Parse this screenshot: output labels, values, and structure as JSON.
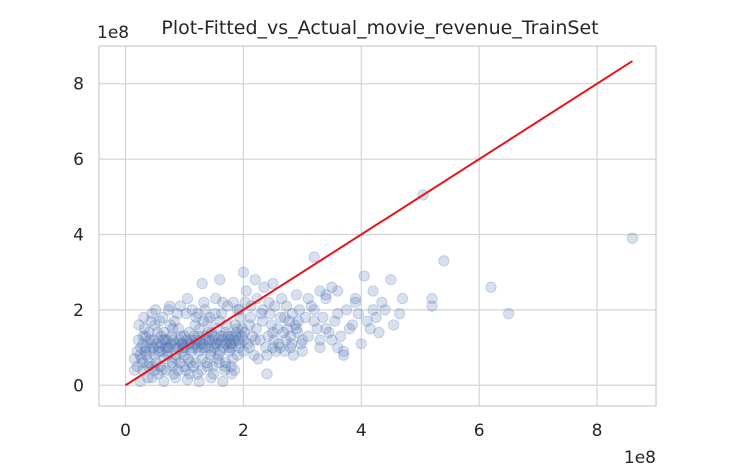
{
  "chart_data": {
    "type": "scatter",
    "title": "Plot-Fitted_vs_Actual_movie_revenue_TrainSet",
    "xlabel": "",
    "ylabel": "",
    "x_offset_label": "1e8",
    "y_offset_label": "1e8",
    "xlim": [
      -0.45,
      9.0
    ],
    "ylim": [
      -0.55,
      9.0
    ],
    "x_ticks": [
      0,
      2,
      4,
      6,
      8
    ],
    "y_ticks": [
      0,
      2,
      4,
      6,
      8
    ],
    "x_tick_labels": [
      "0",
      "2",
      "4",
      "6",
      "8"
    ],
    "y_tick_labels": [
      "0",
      "2",
      "4",
      "6",
      "8"
    ],
    "grid": true,
    "series": [
      {
        "kind": "scatter",
        "color": "#4c72b0",
        "opacity": 0.22,
        "points": [
          [
            0.3,
            1.3
          ],
          [
            0.4,
            0.6
          ],
          [
            0.5,
            1.6
          ],
          [
            0.6,
            0.9
          ],
          [
            0.7,
            1.2
          ],
          [
            0.8,
            0.5
          ],
          [
            0.9,
            1.5
          ],
          [
            1.0,
            0.8
          ],
          [
            1.1,
            1.1
          ],
          [
            1.2,
            1.8
          ],
          [
            1.3,
            0.7
          ],
          [
            1.4,
            1.4
          ],
          [
            1.5,
            1.0
          ],
          [
            1.6,
            1.7
          ],
          [
            1.7,
            0.6
          ],
          [
            1.8,
            1.3
          ],
          [
            1.9,
            2.0
          ],
          [
            2.0,
            0.9
          ],
          [
            2.1,
            1.6
          ],
          [
            2.2,
            1.2
          ],
          [
            2.3,
            1.9
          ],
          [
            2.4,
            0.8
          ],
          [
            2.5,
            1.4
          ],
          [
            2.6,
            1.1
          ],
          [
            2.7,
            1.8
          ],
          [
            2.8,
            1.0
          ],
          [
            2.9,
            1.5
          ],
          [
            3.0,
            1.2
          ],
          [
            0.2,
            0.5
          ],
          [
            0.35,
            1.0
          ],
          [
            0.45,
            1.9
          ],
          [
            0.55,
            0.3
          ],
          [
            0.65,
            1.4
          ],
          [
            0.75,
            2.1
          ],
          [
            0.85,
            0.7
          ],
          [
            0.95,
            1.1
          ],
          [
            1.05,
            2.3
          ],
          [
            1.15,
            0.5
          ],
          [
            1.25,
            1.3
          ],
          [
            1.35,
            2.0
          ],
          [
            1.45,
            0.9
          ],
          [
            1.55,
            1.5
          ],
          [
            1.65,
            2.2
          ],
          [
            1.75,
            1.0
          ],
          [
            1.85,
            0.4
          ],
          [
            1.95,
            1.8
          ],
          [
            2.05,
            2.5
          ],
          [
            2.15,
            1.3
          ],
          [
            2.25,
            0.7
          ],
          [
            2.35,
            2.6
          ],
          [
            2.45,
            1.9
          ],
          [
            2.55,
            0.9
          ],
          [
            2.65,
            2.3
          ],
          [
            2.75,
            1.5
          ],
          [
            2.85,
            0.8
          ],
          [
            2.95,
            2.0
          ],
          [
            3.1,
            1.3
          ],
          [
            3.2,
            1.7
          ],
          [
            3.3,
            1.0
          ],
          [
            3.4,
            2.4
          ],
          [
            3.5,
            1.2
          ],
          [
            3.6,
            1.9
          ],
          [
            3.7,
            0.9
          ],
          [
            3.8,
            1.5
          ],
          [
            3.9,
            2.2
          ],
          [
            4.0,
            1.1
          ],
          [
            4.1,
            1.7
          ],
          [
            4.2,
            2.5
          ],
          [
            4.3,
            1.4
          ],
          [
            4.4,
            2.0
          ],
          [
            1.3,
            2.7
          ],
          [
            1.6,
            2.8
          ],
          [
            2.0,
            3.0
          ],
          [
            2.2,
            2.8
          ],
          [
            2.5,
            2.7
          ],
          [
            2.9,
            2.4
          ],
          [
            3.2,
            3.4
          ],
          [
            3.5,
            2.6
          ],
          [
            3.6,
            2.5
          ],
          [
            3.9,
            2.3
          ],
          [
            4.05,
            2.9
          ],
          [
            4.15,
            1.5
          ],
          [
            4.2,
            2.0
          ],
          [
            4.5,
            2.8
          ],
          [
            4.7,
            2.3
          ],
          [
            5.05,
            5.05
          ],
          [
            5.4,
            3.3
          ],
          [
            5.2,
            2.1
          ],
          [
            5.2,
            2.3
          ],
          [
            6.2,
            2.6
          ],
          [
            6.5,
            1.9
          ],
          [
            8.6,
            3.9
          ],
          [
            3.3,
            1.2
          ],
          [
            3.4,
            1.5
          ],
          [
            3.6,
            1.0
          ],
          [
            3.7,
            0.8
          ],
          [
            3.0,
            0.9
          ],
          [
            2.8,
            1.3
          ],
          [
            2.7,
            0.9
          ],
          [
            2.5,
            1.0
          ],
          [
            2.4,
            0.3
          ],
          [
            2.1,
            1.0
          ],
          [
            1.9,
            0.8
          ],
          [
            1.8,
            0.3
          ],
          [
            0.25,
            0.8
          ],
          [
            0.3,
            0.4
          ],
          [
            0.32,
            1.5
          ],
          [
            0.38,
            0.2
          ],
          [
            0.42,
            0.9
          ],
          [
            0.48,
            1.2
          ],
          [
            0.52,
            0.6
          ],
          [
            0.58,
            1.7
          ],
          [
            0.62,
            0.4
          ],
          [
            0.68,
            1.0
          ],
          [
            0.72,
            0.8
          ],
          [
            0.78,
            1.3
          ],
          [
            0.82,
            0.3
          ],
          [
            0.88,
            1.9
          ],
          [
            0.92,
            0.6
          ],
          [
            0.98,
            1.0
          ],
          [
            1.02,
            0.4
          ],
          [
            1.08,
            1.4
          ],
          [
            1.12,
            0.9
          ],
          [
            1.18,
            1.6
          ],
          [
            1.22,
            0.3
          ],
          [
            1.28,
            1.1
          ],
          [
            1.32,
            1.7
          ],
          [
            1.38,
            0.6
          ],
          [
            1.42,
            1.2
          ],
          [
            1.48,
            0.5
          ],
          [
            1.52,
            1.9
          ],
          [
            1.58,
            0.8
          ],
          [
            1.62,
            1.3
          ],
          [
            1.68,
            0.4
          ],
          [
            1.72,
            1.6
          ],
          [
            1.78,
            1.1
          ],
          [
            1.82,
            0.7
          ],
          [
            1.88,
            1.4
          ],
          [
            1.92,
            1.0
          ],
          [
            1.98,
            1.5
          ],
          [
            0.2,
            0.9
          ],
          [
            0.22,
            1.2
          ],
          [
            0.27,
            0.7
          ],
          [
            0.34,
            1.3
          ],
          [
            0.36,
            0.8
          ],
          [
            0.44,
            1.1
          ],
          [
            0.46,
            0.5
          ],
          [
            0.54,
            1.4
          ],
          [
            0.56,
            0.9
          ],
          [
            0.64,
            1.2
          ],
          [
            0.66,
            0.7
          ],
          [
            0.74,
            1.0
          ],
          [
            0.76,
            1.6
          ],
          [
            0.84,
            1.1
          ],
          [
            0.86,
            0.8
          ],
          [
            0.94,
            1.3
          ],
          [
            0.96,
            0.9
          ],
          [
            1.04,
            1.2
          ],
          [
            1.06,
            0.7
          ],
          [
            1.14,
            1.0
          ],
          [
            1.16,
            1.3
          ],
          [
            1.24,
            0.9
          ],
          [
            1.26,
            1.5
          ],
          [
            1.34,
            1.0
          ],
          [
            1.36,
            1.2
          ],
          [
            1.44,
            0.8
          ],
          [
            1.46,
            1.4
          ],
          [
            1.54,
            1.1
          ],
          [
            1.56,
            0.7
          ],
          [
            1.64,
            1.2
          ],
          [
            1.66,
            1.0
          ],
          [
            1.74,
            1.3
          ],
          [
            1.76,
            0.9
          ],
          [
            1.84,
            1.2
          ],
          [
            1.86,
            1.6
          ],
          [
            1.94,
            1.1
          ],
          [
            2.02,
            1.4
          ],
          [
            2.08,
            1.1
          ],
          [
            2.12,
            1.8
          ],
          [
            2.18,
            0.8
          ],
          [
            2.22,
            1.5
          ],
          [
            2.28,
            1.2
          ],
          [
            2.32,
            1.7
          ],
          [
            2.38,
            1.0
          ],
          [
            2.42,
            1.3
          ],
          [
            2.48,
            1.6
          ],
          [
            2.52,
            1.2
          ],
          [
            2.58,
            1.5
          ],
          [
            2.62,
            1.0
          ],
          [
            2.68,
            1.4
          ],
          [
            2.72,
            1.2
          ],
          [
            2.78,
            1.7
          ],
          [
            2.82,
            1.1
          ],
          [
            2.88,
            1.6
          ],
          [
            2.92,
            1.4
          ],
          [
            2.98,
            1.1
          ],
          [
            0.3,
            1.1
          ],
          [
            0.4,
            1.4
          ],
          [
            0.5,
            0.8
          ],
          [
            0.6,
            1.3
          ],
          [
            0.7,
            0.9
          ],
          [
            0.8,
            1.5
          ],
          [
            0.9,
            1.0
          ],
          [
            1.0,
            1.3
          ],
          [
            1.1,
            0.6
          ],
          [
            1.2,
            1.2
          ],
          [
            1.3,
            1.0
          ],
          [
            1.4,
            1.7
          ],
          [
            1.5,
            1.3
          ],
          [
            1.6,
            0.9
          ],
          [
            1.7,
            1.4
          ],
          [
            1.8,
            1.0
          ],
          [
            1.9,
            1.5
          ],
          [
            2.0,
            1.2
          ],
          [
            0.26,
            1.0
          ],
          [
            0.33,
            0.9
          ],
          [
            0.41,
            1.2
          ],
          [
            0.47,
            1.0
          ],
          [
            0.53,
            1.1
          ],
          [
            0.57,
            1.0
          ],
          [
            0.61,
            1.1
          ],
          [
            0.67,
            1.2
          ],
          [
            0.71,
            1.0
          ],
          [
            0.77,
            1.1
          ],
          [
            0.81,
            1.2
          ],
          [
            0.87,
            1.0
          ],
          [
            0.91,
            1.2
          ],
          [
            0.97,
            1.1
          ],
          [
            1.01,
            1.0
          ],
          [
            1.07,
            1.1
          ],
          [
            1.11,
            1.2
          ],
          [
            1.17,
            1.1
          ],
          [
            1.21,
            1.0
          ],
          [
            1.27,
            1.2
          ],
          [
            1.31,
            1.1
          ],
          [
            1.37,
            1.3
          ],
          [
            1.41,
            1.0
          ],
          [
            1.47,
            1.2
          ],
          [
            1.51,
            1.1
          ],
          [
            1.57,
            1.2
          ],
          [
            1.61,
            1.1
          ],
          [
            1.67,
            1.3
          ],
          [
            1.71,
            1.1
          ],
          [
            1.77,
            1.2
          ],
          [
            1.81,
            1.1
          ],
          [
            1.87,
            1.3
          ],
          [
            1.91,
            1.2
          ],
          [
            1.97,
            1.3
          ],
          [
            0.29,
            0.6
          ],
          [
            0.39,
            0.5
          ],
          [
            0.49,
            0.4
          ],
          [
            0.59,
            0.5
          ],
          [
            0.69,
            0.4
          ],
          [
            0.79,
            0.6
          ],
          [
            0.89,
            0.4
          ],
          [
            0.99,
            0.5
          ],
          [
            1.09,
            0.3
          ],
          [
            1.19,
            0.6
          ],
          [
            1.29,
            0.4
          ],
          [
            1.39,
            0.5
          ],
          [
            1.49,
            0.3
          ],
          [
            1.59,
            0.6
          ],
          [
            1.69,
            0.5
          ],
          [
            1.79,
            0.5
          ],
          [
            0.23,
            1.6
          ],
          [
            0.31,
            1.8
          ],
          [
            0.43,
            1.7
          ],
          [
            0.51,
            2.0
          ],
          [
            0.63,
            1.8
          ],
          [
            0.73,
            2.0
          ],
          [
            0.83,
            1.7
          ],
          [
            0.93,
            2.1
          ],
          [
            1.03,
            1.9
          ],
          [
            1.13,
            2.0
          ],
          [
            1.23,
            1.9
          ],
          [
            1.33,
            2.2
          ],
          [
            1.43,
            1.8
          ],
          [
            1.53,
            2.3
          ],
          [
            1.63,
            1.9
          ],
          [
            1.73,
            2.1
          ],
          [
            1.83,
            2.2
          ],
          [
            1.93,
            2.0
          ],
          [
            2.03,
            2.2
          ],
          [
            2.13,
            2.1
          ],
          [
            2.23,
            2.3
          ],
          [
            2.33,
            2.0
          ],
          [
            2.43,
            2.2
          ],
          [
            2.53,
            2.1
          ],
          [
            2.63,
            1.8
          ],
          [
            2.73,
            2.1
          ],
          [
            2.83,
            1.9
          ],
          [
            2.93,
            1.7
          ],
          [
            3.05,
            1.8
          ],
          [
            3.15,
            2.1
          ],
          [
            3.25,
            1.5
          ],
          [
            3.35,
            1.8
          ],
          [
            3.45,
            1.4
          ],
          [
            3.55,
            1.7
          ],
          [
            3.65,
            1.3
          ],
          [
            3.75,
            2.0
          ],
          [
            3.85,
            1.6
          ],
          [
            3.95,
            1.9
          ],
          [
            4.25,
            1.8
          ],
          [
            4.35,
            2.2
          ],
          [
            4.55,
            1.6
          ],
          [
            4.65,
            1.9
          ],
          [
            3.1,
            2.3
          ],
          [
            3.2,
            2.0
          ],
          [
            3.3,
            2.5
          ],
          [
            3.4,
            2.3
          ],
          [
            0.25,
            0.1
          ],
          [
            0.45,
            0.2
          ],
          [
            0.65,
            0.1
          ],
          [
            0.85,
            0.2
          ],
          [
            1.05,
            0.15
          ],
          [
            1.25,
            0.1
          ],
          [
            1.45,
            0.2
          ],
          [
            1.65,
            0.1
          ],
          [
            0.15,
            0.4
          ],
          [
            0.15,
            0.7
          ]
        ]
      },
      {
        "kind": "line",
        "color": "#e8141c",
        "points": [
          [
            0,
            0
          ],
          [
            8.6,
            8.6
          ]
        ]
      }
    ]
  }
}
